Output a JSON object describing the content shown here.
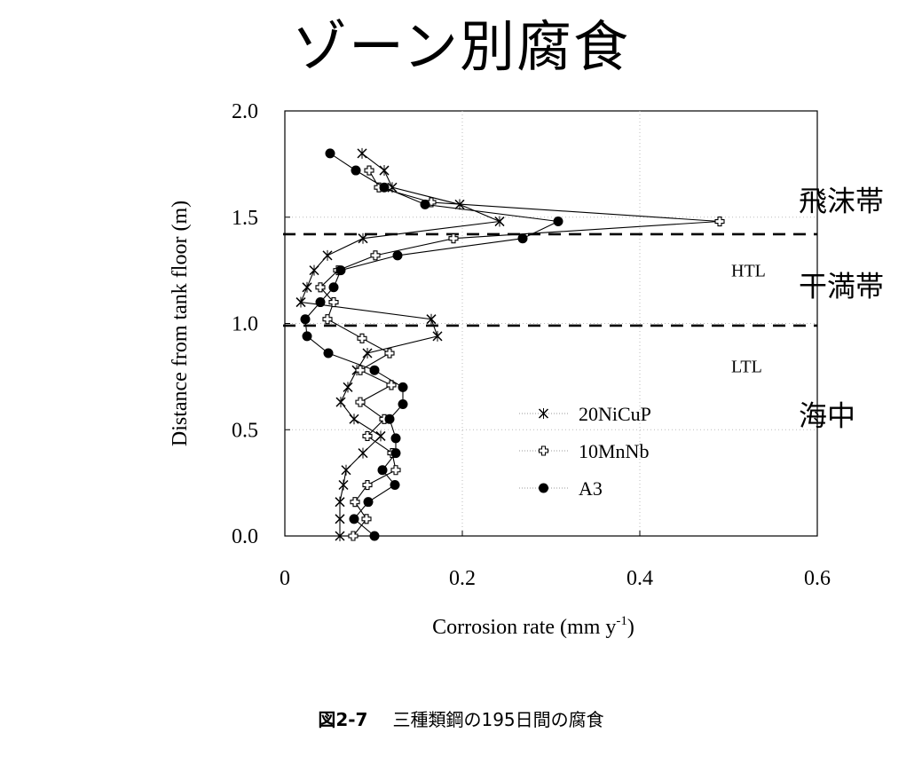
{
  "page": {
    "title": "ゾーン別腐食",
    "caption_number": "図2-7",
    "caption_text": "三種類鋼の195日間の腐食"
  },
  "chart_data": {
    "type": "line",
    "xlabel": "Corrosion rate (mm y",
    "xlabel_superscript": "-1",
    "xlabel_close": ")",
    "ylabel": "Distance from tank floor (m)",
    "xlim": [
      0,
      0.6
    ],
    "ylim": [
      0,
      2.0
    ],
    "x_ticks": [
      {
        "value": 0,
        "label": "0"
      },
      {
        "value": 0.2,
        "label": "0.2"
      },
      {
        "value": 0.4,
        "label": "0.4"
      },
      {
        "value": 0.6,
        "label": "0.6"
      }
    ],
    "y_ticks": [
      {
        "value": 0.0,
        "label": "0.0"
      },
      {
        "value": 0.5,
        "label": "0.5"
      },
      {
        "value": 1.0,
        "label": "1.0"
      },
      {
        "value": 1.5,
        "label": "1.5"
      },
      {
        "value": 2.0,
        "label": "2.0"
      }
    ],
    "reference_lines": [
      {
        "y": 1.42,
        "style": "dashed"
      },
      {
        "y": 0.99,
        "style": "dashed"
      }
    ],
    "annotations": [
      {
        "text": "HTL",
        "x": 0.53,
        "y": 1.25,
        "kind": "en"
      },
      {
        "text": "LTL",
        "x": 0.53,
        "y": 0.8,
        "kind": "en"
      },
      {
        "text": "飛沫帯",
        "x": 0.58,
        "y": 1.58,
        "kind": "ja"
      },
      {
        "text": "干満帯",
        "x": 0.58,
        "y": 1.18,
        "kind": "ja"
      },
      {
        "text": "海中",
        "x": 0.58,
        "y": 0.57,
        "kind": "ja"
      }
    ],
    "legend_position": "lower-center",
    "series": [
      {
        "name": "20NiCuP",
        "marker": "x",
        "points": [
          [
            0.087,
            1.8
          ],
          [
            0.112,
            1.72
          ],
          [
            0.121,
            1.64
          ],
          [
            0.197,
            1.56
          ],
          [
            0.242,
            1.48
          ],
          [
            0.088,
            1.4
          ],
          [
            0.048,
            1.32
          ],
          [
            0.033,
            1.25
          ],
          [
            0.025,
            1.17
          ],
          [
            0.018,
            1.1
          ],
          [
            0.165,
            1.02
          ],
          [
            0.172,
            0.94
          ],
          [
            0.093,
            0.86
          ],
          [
            0.081,
            0.78
          ],
          [
            0.071,
            0.7
          ],
          [
            0.063,
            0.63
          ],
          [
            0.078,
            0.55
          ],
          [
            0.108,
            0.47
          ],
          [
            0.088,
            0.39
          ],
          [
            0.069,
            0.31
          ],
          [
            0.066,
            0.24
          ],
          [
            0.062,
            0.16
          ],
          [
            0.062,
            0.08
          ],
          [
            0.062,
            0.0
          ]
        ]
      },
      {
        "name": "10MnNb",
        "marker": "cross-open",
        "points": [
          [
            0.095,
            1.72
          ],
          [
            0.106,
            1.64
          ],
          [
            0.165,
            1.57
          ],
          [
            0.49,
            1.48
          ],
          [
            0.19,
            1.4
          ],
          [
            0.102,
            1.32
          ],
          [
            0.06,
            1.25
          ],
          [
            0.04,
            1.17
          ],
          [
            0.055,
            1.1
          ],
          [
            0.048,
            1.02
          ],
          [
            0.087,
            0.93
          ],
          [
            0.118,
            0.86
          ],
          [
            0.085,
            0.78
          ],
          [
            0.12,
            0.71
          ],
          [
            0.085,
            0.63
          ],
          [
            0.112,
            0.55
          ],
          [
            0.093,
            0.47
          ],
          [
            0.121,
            0.39
          ],
          [
            0.125,
            0.31
          ],
          [
            0.093,
            0.24
          ],
          [
            0.079,
            0.16
          ],
          [
            0.092,
            0.08
          ],
          [
            0.077,
            0.0
          ]
        ]
      },
      {
        "name": "A3",
        "marker": "filled-circle",
        "points": [
          [
            0.051,
            1.8
          ],
          [
            0.08,
            1.72
          ],
          [
            0.112,
            1.64
          ],
          [
            0.158,
            1.56
          ],
          [
            0.308,
            1.48
          ],
          [
            0.268,
            1.4
          ],
          [
            0.127,
            1.32
          ],
          [
            0.063,
            1.25
          ],
          [
            0.055,
            1.17
          ],
          [
            0.04,
            1.1
          ],
          [
            0.023,
            1.02
          ],
          [
            0.025,
            0.94
          ],
          [
            0.049,
            0.86
          ],
          [
            0.101,
            0.78
          ],
          [
            0.133,
            0.7
          ],
          [
            0.133,
            0.62
          ],
          [
            0.118,
            0.55
          ],
          [
            0.125,
            0.46
          ],
          [
            0.125,
            0.39
          ],
          [
            0.11,
            0.31
          ],
          [
            0.124,
            0.24
          ],
          [
            0.094,
            0.16
          ],
          [
            0.078,
            0.08
          ],
          [
            0.101,
            0.0
          ]
        ]
      }
    ]
  }
}
